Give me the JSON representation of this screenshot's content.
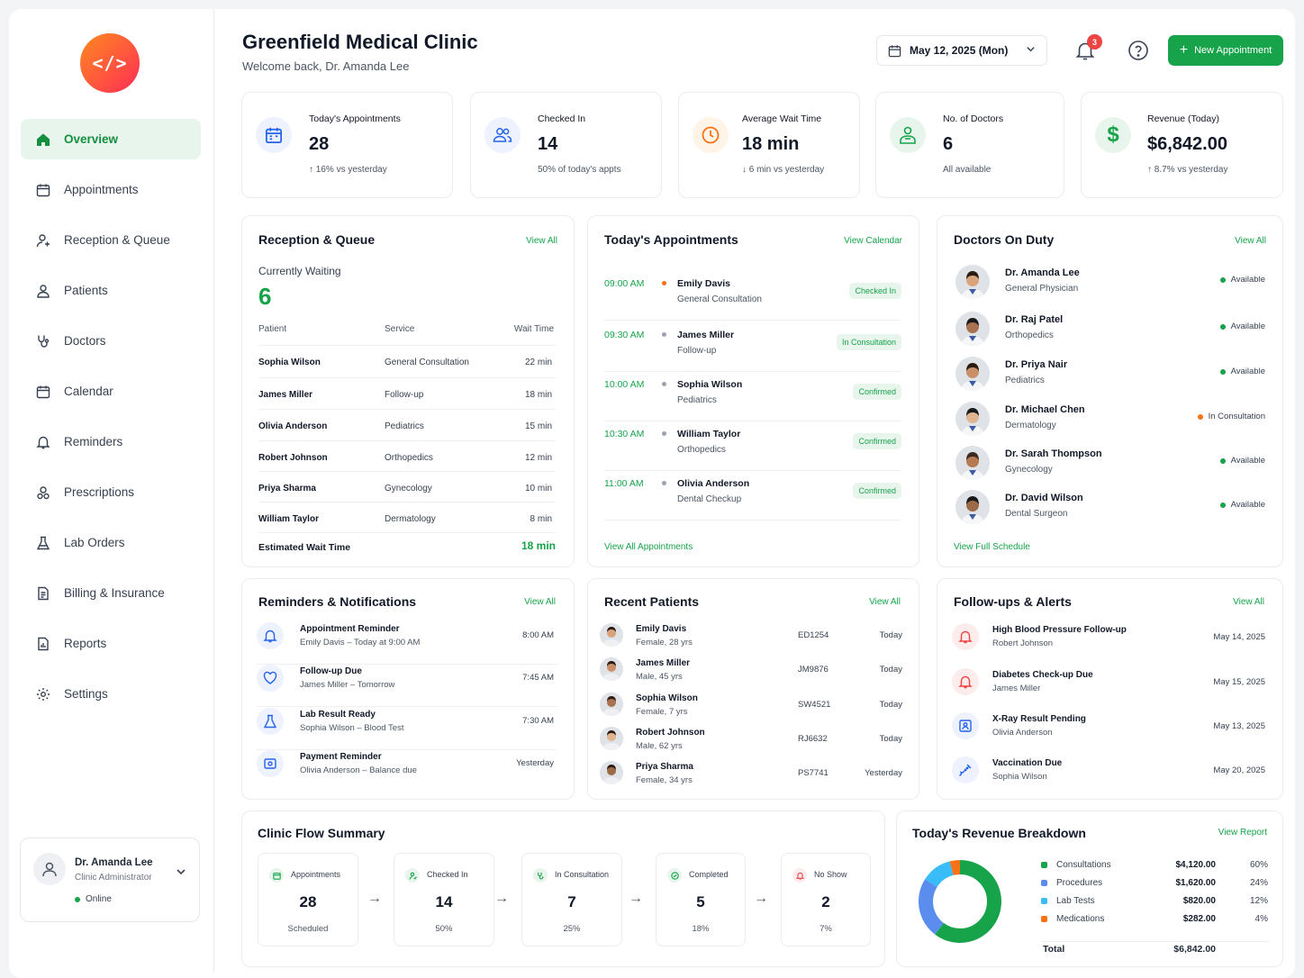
{
  "logo": "</>",
  "nav": [
    {
      "label": "Overview",
      "icon": "home-icon"
    },
    {
      "label": "Appointments",
      "icon": "calendar-icon"
    },
    {
      "label": "Reception & Queue",
      "icon": "user-queue-icon"
    },
    {
      "label": "Patients",
      "icon": "patients-icon"
    },
    {
      "label": "Doctors",
      "icon": "stethoscope-icon"
    },
    {
      "label": "Calendar",
      "icon": "calendar-icon"
    },
    {
      "label": "Reminders",
      "icon": "bell-icon"
    },
    {
      "label": "Prescriptions",
      "icon": "prescription-icon"
    },
    {
      "label": "Lab Orders",
      "icon": "flask-icon"
    },
    {
      "label": "Billing & Insurance",
      "icon": "invoice-icon"
    },
    {
      "label": "Reports",
      "icon": "report-icon"
    },
    {
      "label": "Settings",
      "icon": "gear-icon"
    }
  ],
  "user": {
    "name": "Dr. Amanda Lee",
    "role": "Clinic Administrator",
    "status": "Online"
  },
  "header": {
    "title": "Greenfield Medical Clinic",
    "subtitle": "Welcome back, Dr. Amanda Lee",
    "date": "May 12, 2025 (Mon)",
    "notifications": "3",
    "new_button": "New Appointment"
  },
  "stats": [
    {
      "label": "Today's Appointments",
      "value": "28",
      "sub": "↑  16% vs yesterday",
      "icon": "calendar-icon",
      "color": "#2563eb",
      "bg": "#eef2ff"
    },
    {
      "label": "Checked In",
      "value": "14",
      "sub": "50% of today's appts",
      "icon": "users-icon",
      "color": "#2563eb",
      "bg": "#eef2ff"
    },
    {
      "label": "Average Wait Time",
      "value": "18 min",
      "sub": "↓  6 min vs yesterday",
      "icon": "clock-icon",
      "color": "#f97316",
      "bg": "#fff4e8"
    },
    {
      "label": "No. of Doctors",
      "value": "6",
      "sub": "All available",
      "icon": "doctor-icon",
      "color": "#16a34a",
      "bg": "#e8f5ec"
    },
    {
      "label": "Revenue (Today)",
      "value": "$6,842.00",
      "sub": "↑  8.7% vs yesterday",
      "icon": "dollar-icon",
      "color": "#16a34a",
      "bg": "#e8f5ec"
    }
  ],
  "queue": {
    "title": "Reception & Queue",
    "link": "View All",
    "waiting_label": "Currently Waiting",
    "waiting": "6",
    "headers": {
      "patient": "Patient",
      "service": "Service",
      "wait": "Wait Time"
    },
    "rows": [
      {
        "patient": "Sophia Wilson",
        "service": "General Consultation",
        "wait": "22 min"
      },
      {
        "patient": "James Miller",
        "service": "Follow-up",
        "wait": "18 min"
      },
      {
        "patient": "Olivia Anderson",
        "service": "Pediatrics",
        "wait": "15 min"
      },
      {
        "patient": "Robert Johnson",
        "service": "Orthopedics",
        "wait": "12 min"
      },
      {
        "patient": "Priya Sharma",
        "service": "Gynecology",
        "wait": "10 min"
      },
      {
        "patient": "William Taylor",
        "service": "Dermatology",
        "wait": "8 min"
      }
    ],
    "est_label": "Estimated Wait Time",
    "est_value": "18 min"
  },
  "appointments": {
    "title": "Today's Appointments",
    "link": "View Calendar",
    "footer": "View All Appointments",
    "rows": [
      {
        "time": "09:00 AM",
        "name": "Emily Davis",
        "service": "General Consultation",
        "status": "Checked In",
        "dot": "#f97316"
      },
      {
        "time": "09:30 AM",
        "name": "James Miller",
        "service": "Follow-up",
        "status": "In Consultation",
        "dot": "#9ca3af"
      },
      {
        "time": "10:00 AM",
        "name": "Sophia Wilson",
        "service": "Pediatrics",
        "status": "Confirmed",
        "dot": "#9ca3af"
      },
      {
        "time": "10:30 AM",
        "name": "William Taylor",
        "service": "Orthopedics",
        "status": "Confirmed",
        "dot": "#9ca3af"
      },
      {
        "time": "11:00 AM",
        "name": "Olivia Anderson",
        "service": "Dental Checkup",
        "status": "Confirmed",
        "dot": "#9ca3af"
      }
    ]
  },
  "doctors": {
    "title": "Doctors On Duty",
    "link": "View All",
    "footer": "View Full Schedule",
    "rows": [
      {
        "name": "Dr. Amanda Lee",
        "spec": "General Physician",
        "status": "Available",
        "dot": "#16a34a"
      },
      {
        "name": "Dr. Raj Patel",
        "spec": "Orthopedics",
        "status": "Available",
        "dot": "#16a34a"
      },
      {
        "name": "Dr. Priya Nair",
        "spec": "Pediatrics",
        "status": "Available",
        "dot": "#16a34a"
      },
      {
        "name": "Dr. Michael Chen",
        "spec": "Dermatology",
        "status": "In Consultation",
        "dot": "#f97316"
      },
      {
        "name": "Dr. Sarah Thompson",
        "spec": "Gynecology",
        "status": "Available",
        "dot": "#16a34a"
      },
      {
        "name": "Dr. David Wilson",
        "spec": "Dental Surgeon",
        "status": "Available",
        "dot": "#16a34a"
      }
    ]
  },
  "reminders": {
    "title": "Reminders & Notifications",
    "link": "View All",
    "rows": [
      {
        "title": "Appointment Reminder",
        "sub": "Emily Davis – Today at 9:00 AM",
        "time": "8:00 AM",
        "icon": "bell-icon"
      },
      {
        "title": "Follow-up Due",
        "sub": "James Miller – Tomorrow",
        "time": "7:45 AM",
        "icon": "heart-icon"
      },
      {
        "title": "Lab Result Ready",
        "sub": "Sophia Wilson – Blood Test",
        "time": "7:30 AM",
        "icon": "flask-icon"
      },
      {
        "title": "Payment Reminder",
        "sub": "Olivia Anderson – Balance due",
        "time": "Yesterday",
        "icon": "wallet-icon"
      }
    ]
  },
  "recent": {
    "title": "Recent Patients",
    "link": "View All",
    "rows": [
      {
        "name": "Emily Davis",
        "sub": "Female, 28 yrs",
        "id": "ED1254",
        "date": "Today"
      },
      {
        "name": "James Miller",
        "sub": "Male, 45 yrs",
        "id": "JM9876",
        "date": "Today"
      },
      {
        "name": "Sophia Wilson",
        "sub": "Female, 7 yrs",
        "id": "SW4521",
        "date": "Today"
      },
      {
        "name": "Robert Johnson",
        "sub": "Male, 62 yrs",
        "id": "RJ6632",
        "date": "Today"
      },
      {
        "name": "Priya Sharma",
        "sub": "Female, 34 yrs",
        "id": "PS7741",
        "date": "Yesterday"
      }
    ]
  },
  "followups": {
    "title": "Follow-ups & Alerts",
    "link": "View All",
    "rows": [
      {
        "title": "High Blood Pressure Follow-up",
        "sub": "Robert Johnson",
        "date": "May 14, 2025",
        "icon": "bell-icon",
        "color": "#ef4444",
        "bg": "#fdecec"
      },
      {
        "title": "Diabetes Check-up Due",
        "sub": "James Miller",
        "date": "May 15, 2025",
        "icon": "bell-icon",
        "color": "#ef4444",
        "bg": "#fdecec"
      },
      {
        "title": "X-Ray Result Pending",
        "sub": "Olivia Anderson",
        "date": "May 13, 2025",
        "icon": "xray-icon",
        "color": "#2563eb",
        "bg": "#eef2ff"
      },
      {
        "title": "Vaccination Due",
        "sub": "Sophia Wilson",
        "date": "May 20, 2025",
        "icon": "syringe-icon",
        "color": "#2563eb",
        "bg": "#eef2ff"
      }
    ]
  },
  "flow": {
    "title": "Clinic Flow Summary",
    "steps": [
      {
        "label": "Appointments",
        "value": "28",
        "sub": "Scheduled",
        "icon": "calendar-icon",
        "color": "#16a34a"
      },
      {
        "label": "Checked In",
        "value": "14",
        "sub": "50%",
        "icon": "user-check-icon",
        "color": "#16a34a"
      },
      {
        "label": "In Consultation",
        "value": "7",
        "sub": "25%",
        "icon": "stethoscope-icon",
        "color": "#16a34a"
      },
      {
        "label": "Completed",
        "value": "5",
        "sub": "18%",
        "icon": "check-circle-icon",
        "color": "#16a34a"
      },
      {
        "label": "No Show",
        "value": "2",
        "sub": "7%",
        "icon": "bell-off-icon",
        "color": "#ef4444"
      }
    ]
  },
  "revenue": {
    "title": "Today's Revenue Breakdown",
    "link": "View Report",
    "total_label": "Total",
    "total": "$6,842.00"
  },
  "chart_data": {
    "type": "pie",
    "categories": [
      "Consultations",
      "Procedures",
      "Lab Tests",
      "Medications"
    ],
    "values": [
      4120,
      1620,
      820,
      282
    ],
    "amounts": [
      "$4,120.00",
      "$1,620.00",
      "$820.00",
      "$282.00"
    ],
    "percents": [
      "60%",
      "24%",
      "12%",
      "4%"
    ],
    "colors": [
      "#16a34a",
      "#5b8def",
      "#38bdf8",
      "#f97316"
    ]
  }
}
